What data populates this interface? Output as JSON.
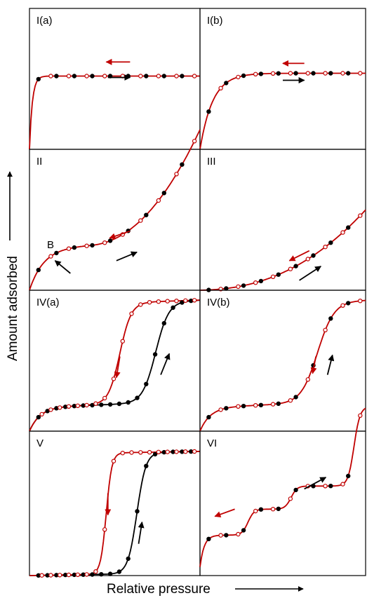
{
  "axes": {
    "x_label": "Relative pressure",
    "y_label": "Amount adsorbed"
  },
  "colors": {
    "adsorption": "#000000",
    "desorption": "#c00000",
    "frame": "#000000"
  },
  "panels": [
    {
      "id": "I(a)",
      "label": "I(a)",
      "type": "type-I-narrow-micropores",
      "hysteresis": false,
      "point_label": ""
    },
    {
      "id": "I(b)",
      "label": "I(b)",
      "type": "type-I-wider-micropores",
      "hysteresis": false,
      "point_label": ""
    },
    {
      "id": "II",
      "label": "II",
      "type": "type-II",
      "hysteresis": false,
      "point_label": "B"
    },
    {
      "id": "III",
      "label": "III",
      "type": "type-III",
      "hysteresis": false,
      "point_label": ""
    },
    {
      "id": "IV(a)",
      "label": "IV(a)",
      "type": "type-IV-with-hysteresis",
      "hysteresis": true,
      "point_label": ""
    },
    {
      "id": "IV(b)",
      "label": "IV(b)",
      "type": "type-IV-reversible",
      "hysteresis": false,
      "point_label": ""
    },
    {
      "id": "V",
      "label": "V",
      "type": "type-V-with-hysteresis",
      "hysteresis": true,
      "point_label": ""
    },
    {
      "id": "VI",
      "label": "VI",
      "type": "type-VI-stepwise",
      "hysteresis": false,
      "point_label": ""
    }
  ],
  "legend": {
    "filled_markers": "adsorption",
    "open_markers": "desorption"
  }
}
